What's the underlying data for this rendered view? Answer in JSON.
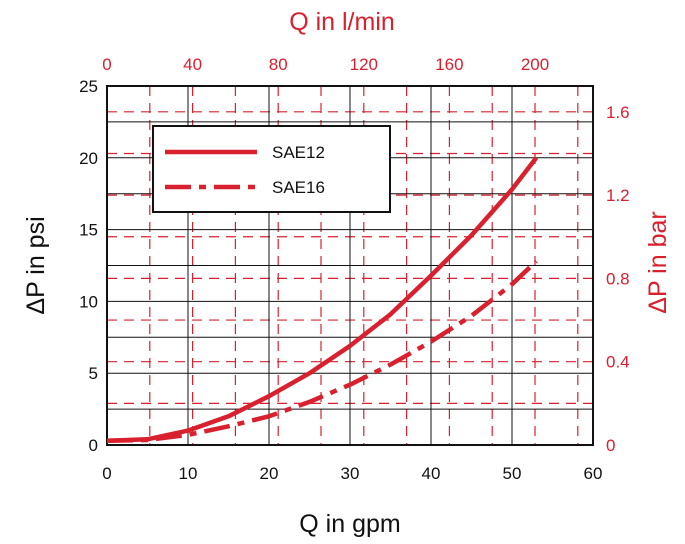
{
  "chart_data": {
    "type": "line",
    "x_axis": {
      "label": "Q in gpm",
      "range": [
        0,
        60
      ],
      "ticks": [
        0,
        10,
        20,
        30,
        40,
        50,
        60
      ]
    },
    "x2_axis": {
      "label": "Q in l/min",
      "range": [
        0,
        227.1
      ],
      "ticks": [
        0,
        40,
        80,
        120,
        160,
        200
      ]
    },
    "y_axis": {
      "label": "ΔP in psi",
      "range": [
        0,
        25
      ],
      "ticks": [
        0,
        5,
        10,
        15,
        20,
        25
      ]
    },
    "y2_axis": {
      "label": "ΔP in bar",
      "range": [
        0,
        1.724
      ],
      "ticks": [
        "0",
        "0.4",
        "0.8",
        "1.2",
        "1.6"
      ]
    },
    "grid": true,
    "legend_position": "top-left",
    "series": [
      {
        "name": "SAE12",
        "style": "solid",
        "color": "#d9202f",
        "x": [
          0,
          5,
          10,
          15,
          20,
          25,
          30,
          35,
          40,
          45,
          50,
          53
        ],
        "y": [
          0.3,
          0.4,
          1.0,
          2.0,
          3.4,
          5.0,
          6.9,
          9.1,
          11.8,
          14.6,
          17.8,
          20.0
        ]
      },
      {
        "name": "SAE16",
        "style": "dash-dot",
        "color": "#d9202f",
        "x": [
          0,
          5,
          10,
          15,
          20,
          25,
          30,
          35,
          40,
          45,
          50,
          53
        ],
        "y": [
          0.3,
          0.35,
          0.7,
          1.3,
          2.0,
          3.0,
          4.2,
          5.6,
          7.2,
          9.0,
          11.2,
          12.8
        ]
      }
    ]
  }
}
